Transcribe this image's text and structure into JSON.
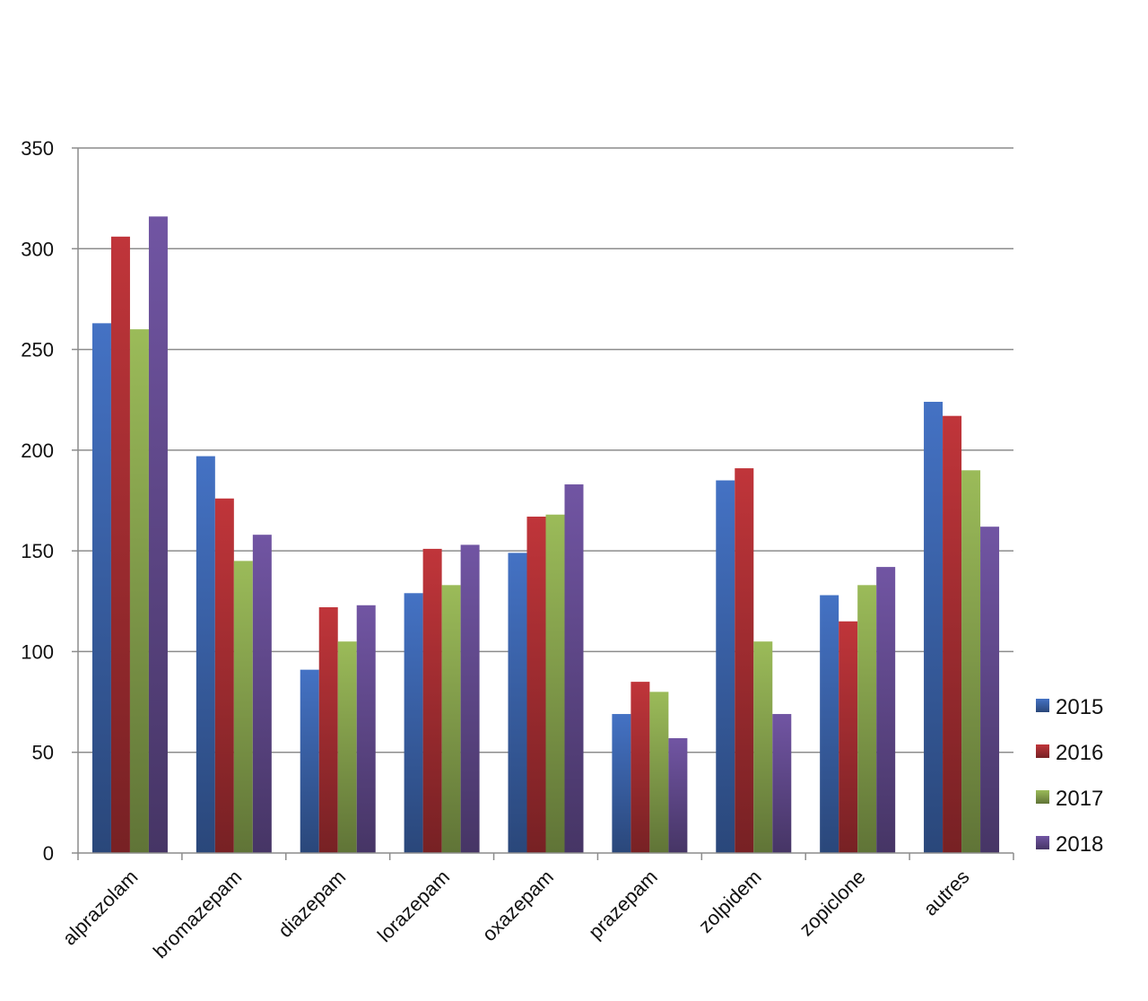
{
  "chart_data": {
    "type": "bar",
    "title": "",
    "xlabel": "",
    "ylabel": "",
    "ylim": [
      0,
      350
    ],
    "yticks": [
      0,
      50,
      100,
      150,
      200,
      250,
      300,
      350
    ],
    "grid": true,
    "legend": "right",
    "categories": [
      "alprazolam",
      "bromazepam",
      "diazepam",
      "lorazepam",
      "oxazepam",
      "prazepam",
      "zolpidem",
      "zopiclone",
      "autres"
    ],
    "series": [
      {
        "name": "2015",
        "color": "#4472C4",
        "values": [
          263,
          197,
          91,
          129,
          149,
          69,
          185,
          128,
          224
        ]
      },
      {
        "name": "2016",
        "color": "#C0353A",
        "values": [
          306,
          176,
          122,
          151,
          167,
          85,
          191,
          115,
          217
        ]
      },
      {
        "name": "2017",
        "color": "#9BBB59",
        "values": [
          260,
          145,
          105,
          133,
          168,
          80,
          105,
          133,
          190
        ]
      },
      {
        "name": "2018",
        "color": "#7155A3",
        "values": [
          316,
          158,
          123,
          153,
          183,
          57,
          69,
          142,
          162
        ]
      }
    ]
  }
}
